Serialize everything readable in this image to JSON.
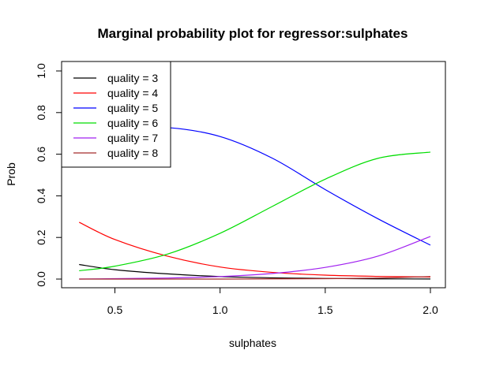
{
  "chart_data": {
    "type": "line",
    "title": "Marginal probability plot for regressor:sulphates",
    "xlabel": "sulphates",
    "ylabel": "Prob",
    "xlim": [
      0.33,
      2.0
    ],
    "ylim": [
      0.0,
      1.0
    ],
    "x_ticks": [
      "0.5",
      "1.0",
      "1.5",
      "2.0"
    ],
    "y_ticks": [
      "0.0",
      "0.2",
      "0.4",
      "0.6",
      "0.8",
      "1.0"
    ],
    "legend_position": "top-left",
    "grid": false,
    "x": [
      0.33,
      0.5,
      0.75,
      1.0,
      1.25,
      1.5,
      1.75,
      2.0
    ],
    "series": [
      {
        "name": "quality = 3",
        "color": "#000000",
        "values": [
          0.07,
          0.045,
          0.025,
          0.012,
          0.006,
          0.003,
          0.001,
          0.0006
        ]
      },
      {
        "name": "quality = 4",
        "color": "#ff0000",
        "values": [
          0.273,
          0.19,
          0.11,
          0.058,
          0.032,
          0.019,
          0.013,
          0.01
        ]
      },
      {
        "name": "quality = 5",
        "color": "#0000ff",
        "values": [
          0.69,
          0.724,
          0.728,
          0.685,
          0.58,
          0.43,
          0.29,
          0.163
        ]
      },
      {
        "name": "quality = 6",
        "color": "#00dd00",
        "values": [
          0.04,
          0.062,
          0.12,
          0.22,
          0.35,
          0.48,
          0.58,
          0.61
        ]
      },
      {
        "name": "quality = 7",
        "color": "#a020f0",
        "values": [
          0.0,
          0.002,
          0.005,
          0.012,
          0.027,
          0.056,
          0.11,
          0.205
        ]
      },
      {
        "name": "quality = 8",
        "color": "#a52a2a",
        "values": [
          0.0,
          0.0,
          0.0,
          0.0,
          0.001,
          0.002,
          0.005,
          0.012
        ]
      }
    ]
  }
}
